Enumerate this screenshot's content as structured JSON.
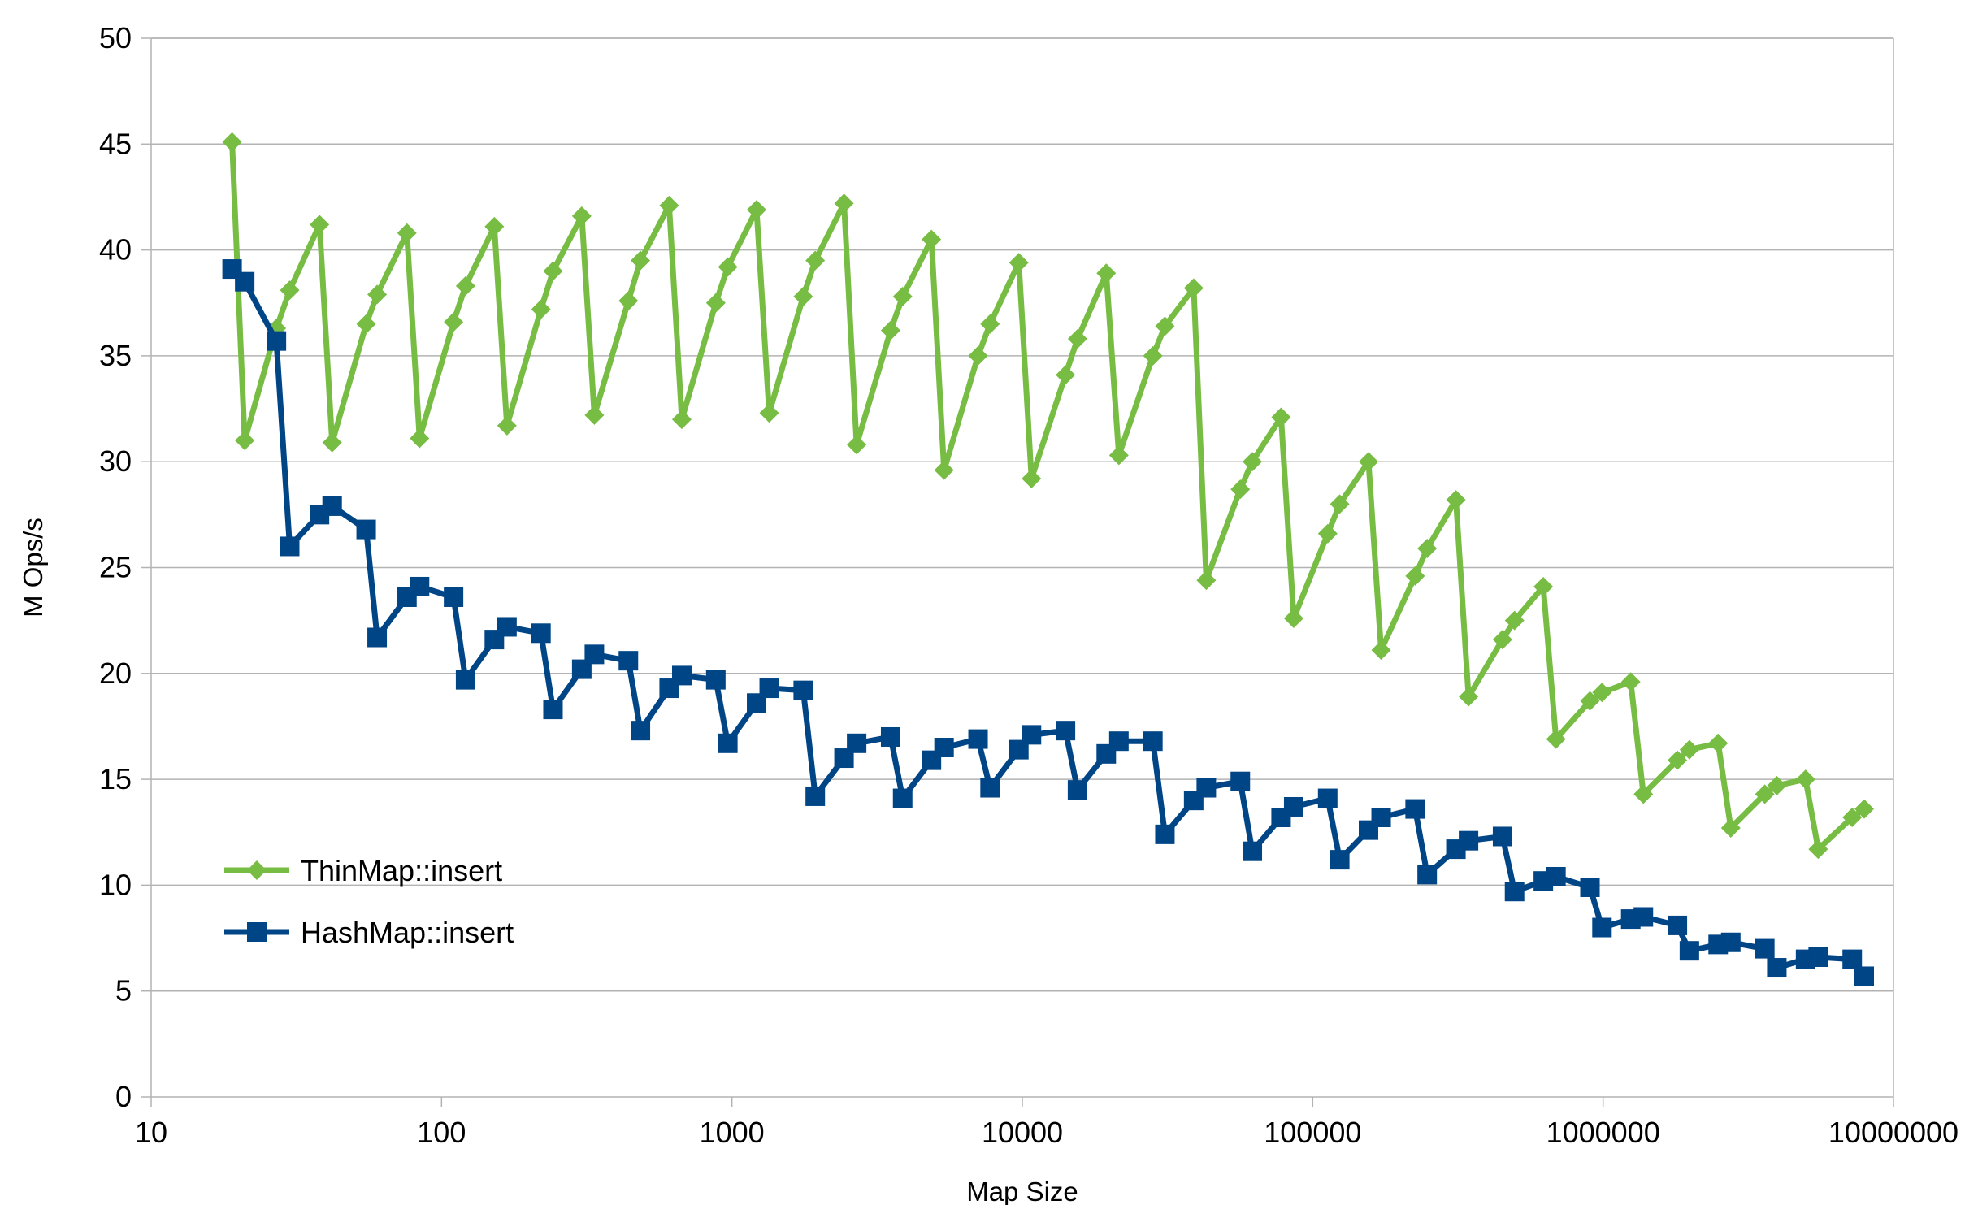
{
  "chart_data": {
    "type": "line",
    "title": "",
    "xlabel": "Map Size",
    "ylabel": "M Ops/s",
    "x_scale": "log",
    "xlim": [
      10,
      10000000
    ],
    "ylim": [
      0,
      50
    ],
    "grid": true,
    "legend_position": "left",
    "x_tick_labels": [
      "10",
      "100",
      "1000",
      "10000",
      "100000",
      "1000000",
      "10000000"
    ],
    "y_tick_labels": [
      "0",
      "5",
      "10",
      "15",
      "20",
      "25",
      "30",
      "35",
      "40",
      "45",
      "50"
    ],
    "series": [
      {
        "name": "ThinMap::insert",
        "color": "#77bc43",
        "marker": "diamond",
        "x": [
          19,
          21,
          27,
          30,
          38,
          42,
          55,
          60,
          76,
          84,
          110,
          121,
          152,
          168,
          220,
          242,
          304,
          336,
          440,
          484,
          608,
          672,
          880,
          968,
          1216,
          1344,
          1760,
          1936,
          2432,
          2688,
          3520,
          3872,
          4864,
          5376,
          7040,
          7744,
          9728,
          10752,
          14080,
          15488,
          19456,
          21504,
          28160,
          30976,
          38912,
          43008,
          56320,
          61952,
          77824,
          86016,
          112640,
          123904,
          155648,
          172032,
          225280,
          247808,
          311296,
          344064,
          450560,
          495616,
          622592,
          688128,
          901120,
          991232,
          1245184,
          1376256,
          1802240,
          1982464,
          2490368,
          2752512,
          3604480,
          3964928,
          4980736,
          5505024,
          7208960,
          7929856
        ],
        "values": [
          45.1,
          31.0,
          36.3,
          38.1,
          41.2,
          30.9,
          36.5,
          37.9,
          40.8,
          31.1,
          36.6,
          38.3,
          41.1,
          31.7,
          37.2,
          39.0,
          41.6,
          32.2,
          37.6,
          39.5,
          42.1,
          32.0,
          37.5,
          39.2,
          41.9,
          32.3,
          37.8,
          39.5,
          42.2,
          30.8,
          36.2,
          37.8,
          40.5,
          29.6,
          35.0,
          36.5,
          39.4,
          29.2,
          34.1,
          35.8,
          38.9,
          30.3,
          35.0,
          36.4,
          38.2,
          24.4,
          28.7,
          30.0,
          32.1,
          22.6,
          26.6,
          28.0,
          30.0,
          21.1,
          24.6,
          25.9,
          28.2,
          18.9,
          21.6,
          22.5,
          24.1,
          16.9,
          18.7,
          19.1,
          19.6,
          14.3,
          15.9,
          16.4,
          16.7,
          12.7,
          14.3,
          14.7,
          15.0,
          11.7,
          13.2,
          13.6
        ]
      },
      {
        "name": "HashMap::insert",
        "color": "#004586",
        "marker": "square",
        "x": [
          19,
          21,
          27,
          30,
          38,
          42,
          55,
          60,
          76,
          84,
          110,
          121,
          152,
          168,
          220,
          242,
          304,
          336,
          440,
          484,
          608,
          672,
          880,
          968,
          1216,
          1344,
          1760,
          1936,
          2432,
          2688,
          3520,
          3872,
          4864,
          5376,
          7040,
          7744,
          9728,
          10752,
          14080,
          15488,
          19456,
          21504,
          28160,
          30976,
          38912,
          43008,
          56320,
          61952,
          77824,
          86016,
          112640,
          123904,
          155648,
          172032,
          225280,
          247808,
          311296,
          344064,
          450560,
          495616,
          622592,
          688128,
          901120,
          991232,
          1245184,
          1376256,
          1802240,
          1982464,
          2490368,
          2752512,
          3604480,
          3964928,
          4980736,
          5505024,
          7208960,
          7929856
        ],
        "values": [
          39.1,
          38.5,
          35.7,
          26.0,
          27.5,
          27.9,
          26.8,
          21.7,
          23.6,
          24.1,
          23.6,
          19.7,
          21.6,
          22.2,
          21.9,
          18.3,
          20.2,
          20.9,
          20.6,
          17.3,
          19.3,
          19.9,
          19.7,
          16.7,
          18.6,
          19.3,
          19.2,
          14.2,
          16.0,
          16.7,
          17.0,
          14.1,
          15.9,
          16.5,
          16.9,
          14.6,
          16.4,
          17.1,
          17.3,
          14.5,
          16.2,
          16.8,
          16.8,
          12.4,
          14.0,
          14.6,
          14.9,
          11.6,
          13.2,
          13.7,
          14.1,
          11.2,
          12.6,
          13.2,
          13.6,
          10.5,
          11.7,
          12.1,
          12.3,
          9.7,
          10.2,
          10.4,
          9.9,
          8.0,
          8.4,
          8.5,
          8.1,
          6.9,
          7.2,
          7.3,
          7.0,
          6.1,
          6.5,
          6.6,
          6.5,
          5.7
        ]
      }
    ]
  }
}
